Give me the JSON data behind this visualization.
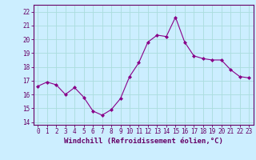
{
  "x": [
    0,
    1,
    2,
    3,
    4,
    5,
    6,
    7,
    8,
    9,
    10,
    11,
    12,
    13,
    14,
    15,
    16,
    17,
    18,
    19,
    20,
    21,
    22,
    23
  ],
  "y": [
    16.6,
    16.9,
    16.7,
    16.0,
    16.5,
    15.8,
    14.8,
    14.5,
    14.9,
    15.7,
    17.3,
    18.3,
    19.8,
    20.3,
    20.2,
    21.6,
    19.8,
    18.8,
    18.6,
    18.5,
    18.5,
    17.8,
    17.3,
    17.2
  ],
  "line_color": "#880088",
  "marker": "D",
  "marker_size": 2.0,
  "bg_color": "#cceeff",
  "grid_color": "#aadddd",
  "xlabel": "Windchill (Refroidissement éolien,°C)",
  "xlabel_fontsize": 6.5,
  "ylabel_ticks": [
    14,
    15,
    16,
    17,
    18,
    19,
    20,
    21,
    22
  ],
  "xticks": [
    0,
    1,
    2,
    3,
    4,
    5,
    6,
    7,
    8,
    9,
    10,
    11,
    12,
    13,
    14,
    15,
    16,
    17,
    18,
    19,
    20,
    21,
    22,
    23
  ],
  "ylim": [
    13.8,
    22.5
  ],
  "xlim": [
    -0.5,
    23.5
  ],
  "tick_fontsize": 5.5,
  "tick_color": "#660066",
  "spine_color": "#660066"
}
